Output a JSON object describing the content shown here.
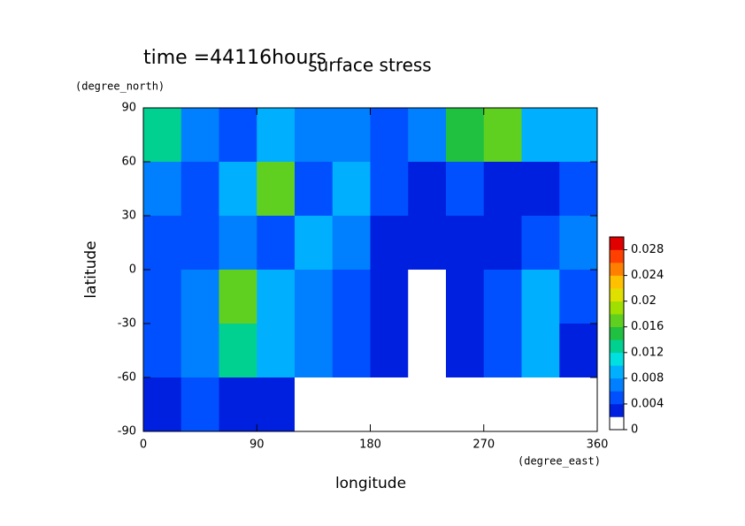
{
  "chart_data": {
    "type": "contour",
    "title": "surface stress",
    "subtitle": "time =44116hours",
    "x_label": "longitude",
    "y_label": "latitude",
    "x_unit": "(degree_east)",
    "y_unit": "(degree_north)",
    "xlim": [
      0,
      360
    ],
    "ylim": [
      -90,
      90
    ],
    "xticks": [
      0,
      90,
      180,
      270,
      360
    ],
    "yticks": [
      -90,
      -60,
      -30,
      0,
      30,
      60,
      90
    ],
    "z": [
      [
        0.012,
        0.006,
        0.005,
        0.008,
        0.006,
        0.006,
        0.005,
        0.006,
        0.014,
        0.016,
        0.008,
        0.008
      ],
      [
        0.006,
        0.004,
        0.008,
        0.016,
        0.005,
        0.008,
        0.004,
        0.003,
        0.004,
        0.002,
        0.003,
        0.004
      ],
      [
        0.004,
        0.004,
        0.006,
        0.005,
        0.008,
        0.006,
        0.003,
        0.002,
        0.002,
        0.002,
        0.004,
        0.006
      ],
      [
        0.004,
        0.006,
        0.016,
        0.008,
        0.006,
        0.005,
        0.003,
        0,
        0.002,
        0.004,
        0.008,
        0.005
      ],
      [
        0.004,
        0.006,
        0.012,
        0.008,
        0.006,
        0.004,
        0.002,
        0.001,
        0.002,
        0.004,
        0.008,
        0.003
      ],
      [
        0.002,
        0.004,
        0.003,
        0.002,
        0.001,
        0,
        0,
        0,
        0,
        0,
        0,
        0
      ]
    ],
    "colorbar": {
      "lim": [
        0,
        0.03
      ],
      "ticks": [
        0,
        0.004,
        0.008,
        0.012,
        0.016,
        0.02,
        0.024,
        0.028
      ],
      "colors": [
        "#ffffff",
        "#0020e0",
        "#0050ff",
        "#0080ff",
        "#00b0ff",
        "#00e0e0",
        "#00d090",
        "#20c040",
        "#60d020",
        "#a0e000",
        "#e0e000",
        "#ffc000",
        "#ff8000",
        "#ff4000",
        "#e00000"
      ]
    }
  }
}
